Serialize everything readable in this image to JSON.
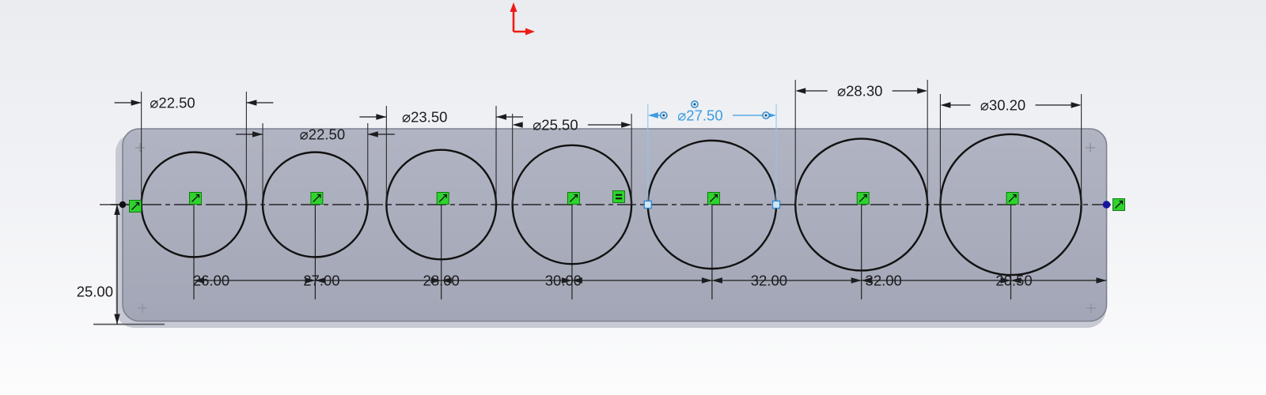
{
  "viewport": {
    "type": "cad-sketch-viewport",
    "description": "Rectangular plate sketch with seven holes, fully dimensioned"
  },
  "dimensions": {
    "diameters": [
      {
        "label": "⌀22.50",
        "value": 22.5,
        "selected": false
      },
      {
        "label": "⌀22.50",
        "value": 22.5,
        "selected": false
      },
      {
        "label": "⌀23.50",
        "value": 23.5,
        "selected": false
      },
      {
        "label": "⌀25.50",
        "value": 25.5,
        "selected": false
      },
      {
        "label": "⌀27.50",
        "value": 27.5,
        "selected": true
      },
      {
        "label": "⌀28.30",
        "value": 28.3,
        "selected": false
      },
      {
        "label": "⌀30.20",
        "value": 30.2,
        "selected": false
      }
    ],
    "spacings": [
      {
        "label": "26.00",
        "value": 26.0
      },
      {
        "label": "27.00",
        "value": 27.0
      },
      {
        "label": "28.00",
        "value": 28.0
      },
      {
        "label": "30.00",
        "value": 30.0
      },
      {
        "label": "32.00",
        "value": 32.0
      },
      {
        "label": "32.00",
        "value": 32.0
      },
      {
        "label": "20.50",
        "value": 20.5
      }
    ],
    "height": {
      "label": "25.00",
      "value": 25.0
    }
  },
  "constraints": {
    "hole_center_icons": 7,
    "edge_point_icons": 2,
    "equal_icon": 1
  },
  "colors": {
    "selected_blue": "#3d9ce1",
    "selected_blue_light": "#8ec6ef",
    "constraint_green": "#2ed32e",
    "constraint_green_border": "#0f7a0f",
    "origin_red": "#ed1c16",
    "plate_gray": "#a8abba",
    "line_black": "#1c1c1e"
  }
}
